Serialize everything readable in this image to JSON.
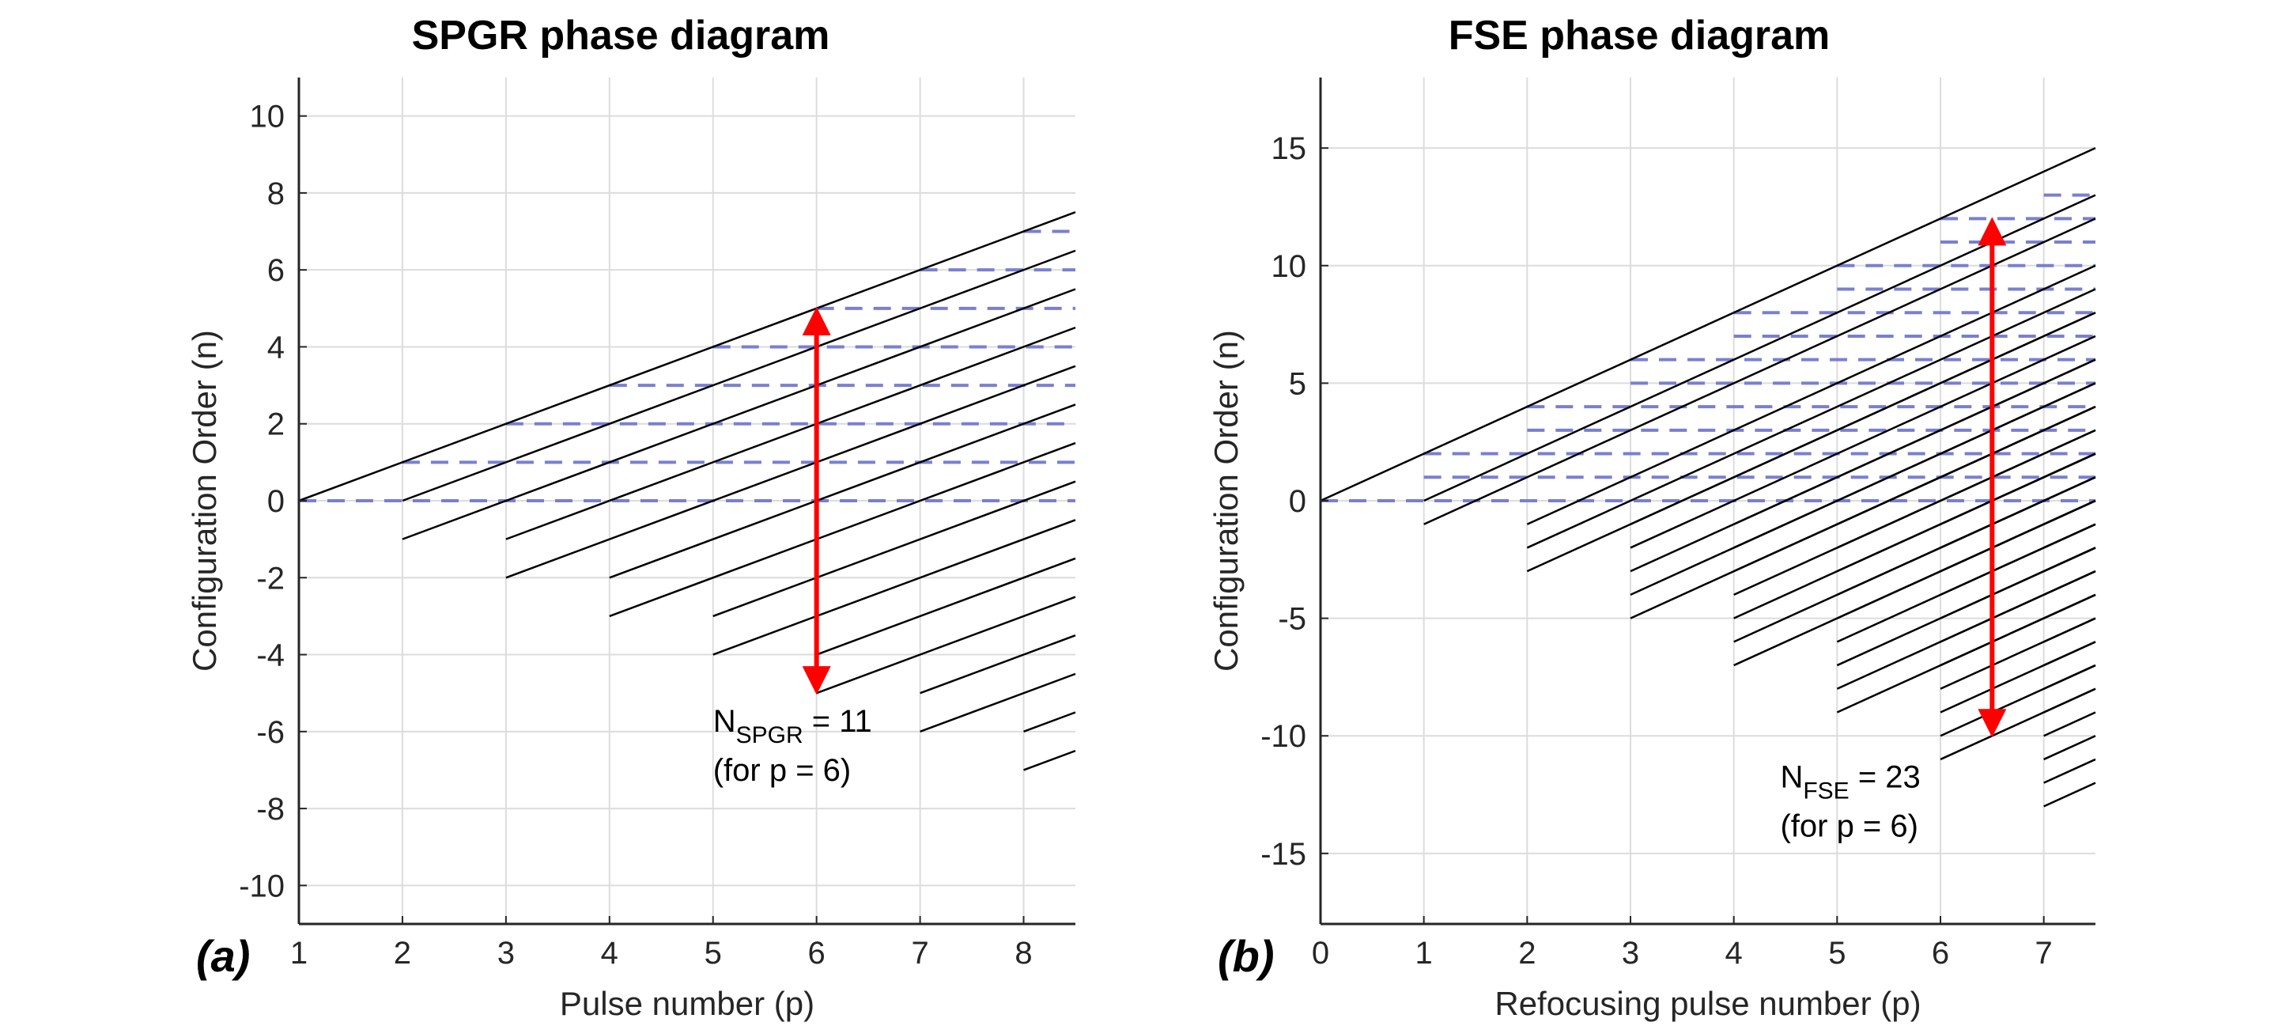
{
  "chart_data": [
    {
      "id": "a",
      "type": "line",
      "panel_label": "(a)",
      "title": "SPGR phase diagram",
      "xlabel": "Pulse number (p)",
      "ylabel": "Configuration Order (n)",
      "xlim": [
        1,
        8.5
      ],
      "ylim": [
        -11,
        11
      ],
      "xticks": [
        1,
        2,
        3,
        4,
        5,
        6,
        7,
        8
      ],
      "yticks": [
        -10,
        -8,
        -6,
        -4,
        -2,
        0,
        2,
        4,
        6,
        8,
        10
      ],
      "grid": true,
      "phase_lines": {
        "description": "From pulse k, each configuration n continues with slope 1; branches n and n-1 spawned at each pulse",
        "slope": 1,
        "start_pulse": 1,
        "x_end": 8.5
      },
      "dashed_levels": {
        "description": "Longitudinal (Z) states held constant between pulses",
        "color": "#7a7fd0"
      },
      "arrow": {
        "x": 6,
        "from": -5,
        "to": 5,
        "color": "#ff0000"
      },
      "annotation": {
        "main": "N",
        "sub": "SPGR",
        "rest": " = 11",
        "line2": "(for p = 6)",
        "x": 5,
        "y": -6
      }
    },
    {
      "id": "b",
      "type": "line",
      "panel_label": "(b)",
      "title": "FSE phase diagram",
      "xlabel": "Refocusing pulse number (p)",
      "ylabel": "Configuration Order (n)",
      "xlim": [
        0,
        7.5
      ],
      "ylim": [
        -18,
        18
      ],
      "xticks": [
        0,
        1,
        2,
        3,
        4,
        5,
        6,
        7
      ],
      "yticks": [
        -15,
        -10,
        -5,
        0,
        5,
        10,
        15
      ],
      "grid": true,
      "phase_lines": {
        "description": "Each refocusing pulse spawns configurations n, -n and Z; slope 2 per pulse interval",
        "slope": 2,
        "x_end": 7.5
      },
      "dashed_levels": {
        "description": "Longitudinal (Z) states held constant between pulses",
        "color": "#7a7fd0"
      },
      "arrow": {
        "x": 6.5,
        "from": -10,
        "to": 12,
        "color": "#ff0000"
      },
      "annotation": {
        "main": "N",
        "sub": "FSE",
        "rest": " = 23",
        "line2": "(for p = 6)",
        "x": 4.45,
        "y": -12.2
      }
    }
  ]
}
